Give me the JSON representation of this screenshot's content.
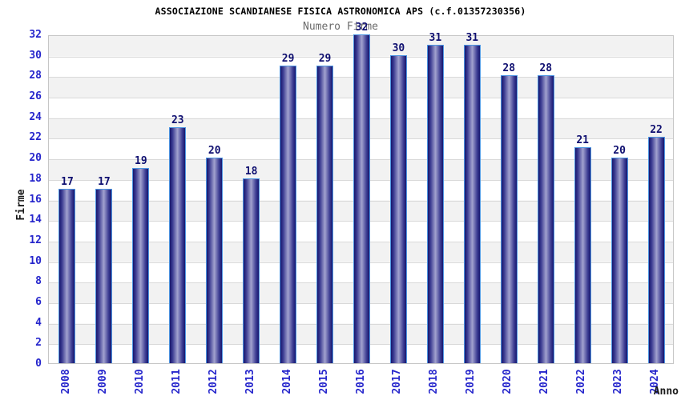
{
  "chart_data": {
    "type": "bar",
    "title": "ASSOCIAZIONE SCANDIANESE FISICA ASTRONOMICA APS (c.f.01357230356)",
    "subtitle": "Numero Firme",
    "xlabel": "Anno",
    "ylabel": "Firme",
    "categories": [
      "2008",
      "2009",
      "2010",
      "2011",
      "2012",
      "2013",
      "2014",
      "2015",
      "2016",
      "2017",
      "2018",
      "2019",
      "2020",
      "2021",
      "2022",
      "2023",
      "2024"
    ],
    "values": [
      17,
      17,
      19,
      23,
      20,
      18,
      29,
      29,
      32,
      30,
      31,
      31,
      28,
      28,
      21,
      20,
      22
    ],
    "ylim": [
      0,
      32
    ],
    "ytick_step": 2,
    "bar_value_labels": true,
    "legend": "none",
    "grid": "horizontal",
    "background_bands": true,
    "x_tick_rotation": -90,
    "colors": {
      "bar_edge": "#17176e",
      "bar_center": "#a2a2cf",
      "bar_border": "#4e96e2",
      "tick_label": "#2626cc",
      "value_label": "#0f0f70",
      "title": "#000000",
      "subtitle": "#6b6b6b",
      "axis_label": "#1a1a1a",
      "band": "#f2f2f2",
      "gridline": "#d9d9d9",
      "plot_border": "#c6c6c6",
      "background": "#ffffff"
    }
  }
}
